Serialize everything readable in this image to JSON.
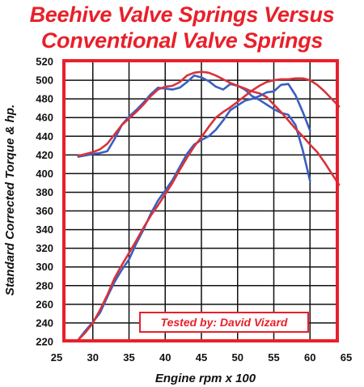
{
  "title_line1": "Beehive Valve Springs Versus",
  "title_line2": "Conventional Valve Springs",
  "colors": {
    "title": "#e8202a",
    "frame": "#e8202a",
    "grid": "#111111",
    "beehive": "#3a5fc0",
    "conventional": "#d8323a"
  },
  "chart_data": {
    "type": "line",
    "xlabel": "Engine rpm x 100",
    "ylabel": "Standard Corrected Torque & hp.",
    "xlim": [
      25,
      65
    ],
    "ylim": [
      220,
      520
    ],
    "xticks": [
      25,
      30,
      35,
      40,
      45,
      50,
      55,
      60,
      65
    ],
    "yticks": [
      220,
      240,
      260,
      280,
      300,
      320,
      340,
      360,
      380,
      400,
      420,
      440,
      460,
      480,
      500,
      520
    ],
    "grid": true,
    "annotation": "Tested by: David Vizard",
    "series": [
      {
        "color": "beehive",
        "x": [
          28,
          30,
          31,
          32,
          33,
          34,
          35,
          36,
          37,
          38,
          39,
          40,
          41,
          42,
          43,
          44,
          45,
          46,
          47,
          48,
          49,
          50,
          51,
          52,
          53,
          54,
          55,
          56,
          57,
          58,
          59,
          60
        ],
        "y": [
          418,
          421,
          422,
          424,
          437,
          452,
          461,
          468,
          476,
          485,
          492,
          491,
          490,
          492,
          498,
          505,
          503,
          499,
          493,
          490,
          496,
          494,
          490,
          483,
          479,
          474,
          469,
          465,
          463,
          452,
          425,
          392
        ]
      },
      {
        "color": "conventional",
        "x": [
          28,
          29,
          30,
          31,
          32,
          33,
          34,
          35,
          36,
          37,
          38,
          39,
          40,
          41,
          42,
          43,
          44,
          45,
          46,
          47,
          48,
          49,
          50,
          51,
          52,
          53,
          54,
          55,
          56,
          57,
          58,
          59,
          60,
          61,
          62,
          63,
          64
        ],
        "y": [
          419,
          421,
          423,
          426,
          432,
          442,
          452,
          459,
          466,
          474,
          483,
          490,
          493,
          494,
          498,
          505,
          508,
          509,
          508,
          505,
          501,
          497,
          494,
          491,
          488,
          486,
          482,
          474,
          466,
          457,
          448,
          440,
          431,
          423,
          412,
          400,
          388
        ]
      },
      {
        "color": "beehive",
        "x": [
          28,
          29,
          30,
          31,
          32,
          33,
          34,
          35,
          36,
          37,
          38,
          39,
          40,
          41,
          42,
          43,
          44,
          45,
          46,
          47,
          48,
          49,
          50,
          51,
          52,
          53,
          54,
          55,
          56,
          57,
          58,
          59,
          60
        ],
        "y": [
          222,
          232,
          241,
          251,
          268,
          284,
          297,
          308,
          325,
          340,
          357,
          371,
          382,
          393,
          407,
          421,
          431,
          436,
          440,
          447,
          457,
          468,
          473,
          478,
          480,
          483,
          487,
          488,
          495,
          496,
          484,
          466,
          446
        ]
      },
      {
        "color": "conventional",
        "x": [
          28,
          29,
          30,
          31,
          32,
          33,
          34,
          35,
          36,
          37,
          38,
          39,
          40,
          41,
          42,
          43,
          44,
          45,
          46,
          47,
          48,
          49,
          50,
          51,
          52,
          53,
          54,
          55,
          56,
          57,
          58,
          59,
          60,
          61,
          62,
          63,
          64
        ],
        "y": [
          222,
          230,
          240,
          254,
          270,
          288,
          302,
          315,
          328,
          342,
          355,
          366,
          378,
          390,
          404,
          417,
          429,
          439,
          450,
          460,
          466,
          471,
          477,
          483,
          489,
          494,
          498,
          500,
          501,
          501,
          502,
          502,
          500,
          495,
          488,
          480,
          472
        ]
      }
    ]
  }
}
